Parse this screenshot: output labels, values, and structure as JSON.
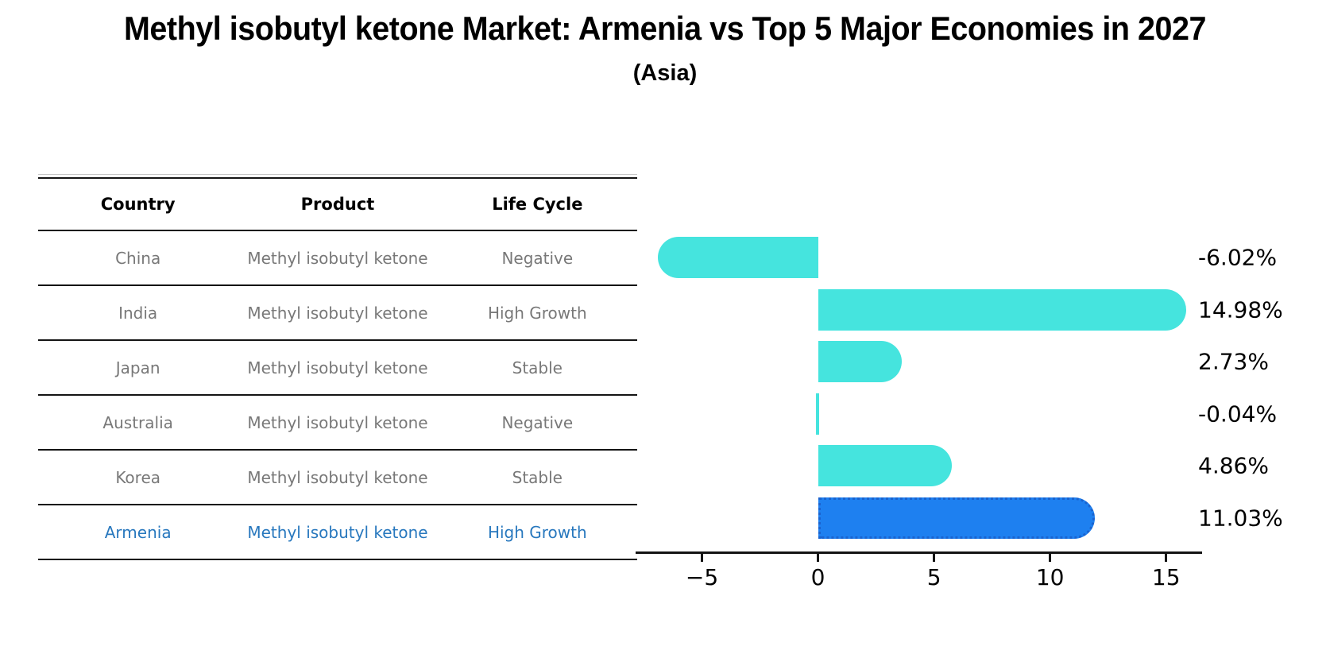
{
  "title": "Methyl isobutyl ketone Market: Armenia vs Top 5 Major Economies in 2027",
  "subtitle": "(Asia)",
  "table": {
    "headers": [
      "Country",
      "Product",
      "Life Cycle"
    ],
    "rows": [
      {
        "country": "China",
        "product": "Methyl isobutyl ketone",
        "life_cycle": "Negative",
        "highlight": false
      },
      {
        "country": "India",
        "product": "Methyl isobutyl ketone",
        "life_cycle": "High Growth",
        "highlight": false
      },
      {
        "country": "Japan",
        "product": "Methyl isobutyl ketone",
        "life_cycle": "Stable",
        "highlight": false
      },
      {
        "country": "Australia",
        "product": "Methyl isobutyl ketone",
        "life_cycle": "Negative",
        "highlight": false
      },
      {
        "country": "Korea",
        "product": "Methyl isobutyl ketone",
        "life_cycle": "Stable",
        "highlight": false
      },
      {
        "country": "Armenia",
        "product": "Methyl isobutyl ketone",
        "life_cycle": "High Growth",
        "highlight": true
      }
    ],
    "text_color": "#787878",
    "highlight_color": "#2878be"
  },
  "chart_data": {
    "type": "bar",
    "orientation": "horizontal",
    "categories": [
      "China",
      "India",
      "Japan",
      "Australia",
      "Korea",
      "Armenia"
    ],
    "values": [
      -6.02,
      14.98,
      2.73,
      -0.04,
      4.86,
      11.03
    ],
    "value_labels": [
      "-6.02%",
      "14.98%",
      "2.73%",
      "-0.04%",
      "4.86%",
      "11.03%"
    ],
    "xlim": [
      -7.86,
      16.55
    ],
    "xticks": [
      -5,
      0,
      5,
      10,
      15
    ],
    "xtick_labels": [
      "−5",
      "0",
      "5",
      "10",
      "15"
    ],
    "grid": false,
    "legend": null,
    "bar_color": "#45e4de",
    "highlight_index": 5,
    "highlight_color": "#1e80f0",
    "highlight_border_color": "#1a63cf"
  }
}
